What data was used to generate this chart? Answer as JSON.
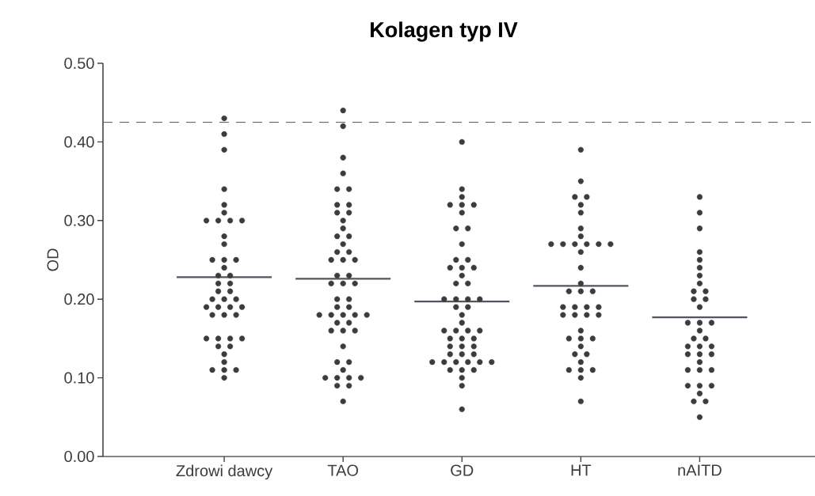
{
  "chart_data": {
    "type": "scatter",
    "title": "Kolagen typ IV",
    "ylabel": "OD",
    "categories": [
      "Zdrowi dawcy",
      "TAO",
      "GD",
      "HT",
      "nAITD"
    ],
    "ylim": [
      0,
      0.5
    ],
    "yticks": [
      {
        "value": 0,
        "label": "0.00"
      },
      {
        "value": 0.1,
        "label": "0.10"
      },
      {
        "value": 0.2,
        "label": "0.20"
      },
      {
        "value": 0.3,
        "label": "0.30"
      },
      {
        "value": 0.4,
        "label": "0.40"
      },
      {
        "value": 0.5,
        "label": "0.50"
      }
    ],
    "series": [
      {
        "color": "#3c3c3c",
        "x": [
          "Zdrowi dawcy",
          "Zdrowi dawcy",
          "Zdrowi dawcy",
          "Zdrowi dawcy",
          "Zdrowi dawcy",
          "Zdrowi dawcy",
          "Zdrowi dawcy",
          "Zdrowi dawcy",
          "Zdrowi dawcy",
          "Zdrowi dawcy",
          "Zdrowi dawcy",
          "Zdrowi dawcy",
          "Zdrowi dawcy",
          "Zdrowi dawcy",
          "Zdrowi dawcy",
          "Zdrowi dawcy",
          "Zdrowi dawcy",
          "Zdrowi dawcy",
          "Zdrowi dawcy",
          "Zdrowi dawcy",
          "Zdrowi dawcy",
          "Zdrowi dawcy",
          "Zdrowi dawcy",
          "Zdrowi dawcy",
          "Zdrowi dawcy",
          "Zdrowi dawcy",
          "Zdrowi dawcy",
          "Zdrowi dawcy",
          "Zdrowi dawcy",
          "Zdrowi dawcy",
          "Zdrowi dawcy",
          "Zdrowi dawcy",
          "Zdrowi dawcy",
          "Zdrowi dawcy",
          "Zdrowi dawcy",
          "Zdrowi dawcy",
          "Zdrowi dawcy",
          "Zdrowi dawcy",
          "Zdrowi dawcy",
          "Zdrowi dawcy",
          "Zdrowi dawcy",
          "Zdrowi dawcy",
          "Zdrowi dawcy",
          "Zdrowi dawcy"
        ],
        "values": [
          0.43,
          0.41,
          0.39,
          0.34,
          0.32,
          0.31,
          0.3,
          0.3,
          0.3,
          0.3,
          0.28,
          0.27,
          0.25,
          0.25,
          0.25,
          0.24,
          0.23,
          0.23,
          0.22,
          0.22,
          0.21,
          0.21,
          0.2,
          0.2,
          0.2,
          0.19,
          0.19,
          0.19,
          0.19,
          0.18,
          0.18,
          0.18,
          0.15,
          0.15,
          0.15,
          0.15,
          0.14,
          0.14,
          0.13,
          0.12,
          0.11,
          0.11,
          0.11,
          0.1
        ]
      },
      {
        "color": "#3c3c3c",
        "x": [
          "TAO",
          "TAO",
          "TAO",
          "TAO",
          "TAO",
          "TAO",
          "TAO",
          "TAO",
          "TAO",
          "TAO",
          "TAO",
          "TAO",
          "TAO",
          "TAO",
          "TAO",
          "TAO",
          "TAO",
          "TAO",
          "TAO",
          "TAO",
          "TAO",
          "TAO",
          "TAO",
          "TAO",
          "TAO",
          "TAO",
          "TAO",
          "TAO",
          "TAO",
          "TAO",
          "TAO",
          "TAO",
          "TAO",
          "TAO",
          "TAO",
          "TAO",
          "TAO",
          "TAO",
          "TAO",
          "TAO",
          "TAO",
          "TAO",
          "TAO",
          "TAO",
          "TAO",
          "TAO",
          "TAO",
          "TAO",
          "TAO",
          "TAO"
        ],
        "values": [
          0.44,
          0.42,
          0.38,
          0.36,
          0.34,
          0.34,
          0.32,
          0.32,
          0.31,
          0.31,
          0.3,
          0.29,
          0.28,
          0.28,
          0.27,
          0.26,
          0.26,
          0.25,
          0.25,
          0.25,
          0.23,
          0.23,
          0.22,
          0.22,
          0.22,
          0.2,
          0.2,
          0.19,
          0.19,
          0.18,
          0.18,
          0.18,
          0.18,
          0.18,
          0.17,
          0.17,
          0.16,
          0.16,
          0.16,
          0.14,
          0.12,
          0.12,
          0.11,
          0.1,
          0.1,
          0.1,
          0.1,
          0.09,
          0.09,
          0.07
        ]
      },
      {
        "color": "#3c3c3c",
        "x": [
          "GD",
          "GD",
          "GD",
          "GD",
          "GD",
          "GD",
          "GD",
          "GD",
          "GD",
          "GD",
          "GD",
          "GD",
          "GD",
          "GD",
          "GD",
          "GD",
          "GD",
          "GD",
          "GD",
          "GD",
          "GD",
          "GD",
          "GD",
          "GD",
          "GD",
          "GD",
          "GD",
          "GD",
          "GD",
          "GD",
          "GD",
          "GD",
          "GD",
          "GD",
          "GD",
          "GD",
          "GD",
          "GD",
          "GD",
          "GD",
          "GD",
          "GD",
          "GD",
          "GD",
          "GD",
          "GD",
          "GD",
          "GD",
          "GD",
          "GD",
          "GD"
        ],
        "values": [
          0.4,
          0.34,
          0.33,
          0.32,
          0.32,
          0.32,
          0.31,
          0.29,
          0.29,
          0.27,
          0.25,
          0.25,
          0.24,
          0.24,
          0.24,
          0.23,
          0.22,
          0.22,
          0.2,
          0.2,
          0.2,
          0.2,
          0.19,
          0.19,
          0.18,
          0.17,
          0.16,
          0.16,
          0.16,
          0.16,
          0.15,
          0.15,
          0.15,
          0.14,
          0.14,
          0.14,
          0.13,
          0.13,
          0.13,
          0.12,
          0.12,
          0.12,
          0.12,
          0.12,
          0.12,
          0.11,
          0.11,
          0.11,
          0.1,
          0.09,
          0.06
        ]
      },
      {
        "color": "#3c3c3c",
        "x": [
          "HT",
          "HT",
          "HT",
          "HT",
          "HT",
          "HT",
          "HT",
          "HT",
          "HT",
          "HT",
          "HT",
          "HT",
          "HT",
          "HT",
          "HT",
          "HT",
          "HT",
          "HT",
          "HT",
          "HT",
          "HT",
          "HT",
          "HT",
          "HT",
          "HT",
          "HT",
          "HT",
          "HT",
          "HT",
          "HT",
          "HT",
          "HT",
          "HT",
          "HT",
          "HT",
          "HT",
          "HT",
          "HT",
          "HT",
          "HT",
          "HT"
        ],
        "values": [
          0.39,
          0.35,
          0.33,
          0.33,
          0.32,
          0.31,
          0.29,
          0.28,
          0.27,
          0.27,
          0.27,
          0.27,
          0.27,
          0.27,
          0.26,
          0.24,
          0.22,
          0.21,
          0.21,
          0.21,
          0.19,
          0.19,
          0.19,
          0.19,
          0.18,
          0.18,
          0.18,
          0.18,
          0.16,
          0.15,
          0.15,
          0.15,
          0.14,
          0.13,
          0.13,
          0.12,
          0.11,
          0.11,
          0.11,
          0.1,
          0.07
        ]
      },
      {
        "color": "#3c3c3c",
        "x": [
          "nAITD",
          "nAITD",
          "nAITD",
          "nAITD",
          "nAITD",
          "nAITD",
          "nAITD",
          "nAITD",
          "nAITD",
          "nAITD",
          "nAITD",
          "nAITD",
          "nAITD",
          "nAITD",
          "nAITD",
          "nAITD",
          "nAITD",
          "nAITD",
          "nAITD",
          "nAITD",
          "nAITD",
          "nAITD",
          "nAITD",
          "nAITD",
          "nAITD",
          "nAITD",
          "nAITD",
          "nAITD",
          "nAITD",
          "nAITD",
          "nAITD",
          "nAITD",
          "nAITD",
          "nAITD",
          "nAITD",
          "nAITD"
        ],
        "values": [
          0.33,
          0.31,
          0.29,
          0.26,
          0.25,
          0.24,
          0.23,
          0.22,
          0.21,
          0.21,
          0.2,
          0.2,
          0.19,
          0.17,
          0.17,
          0.17,
          0.16,
          0.15,
          0.15,
          0.14,
          0.14,
          0.14,
          0.13,
          0.13,
          0.13,
          0.12,
          0.11,
          0.11,
          0.11,
          0.09,
          0.09,
          0.09,
          0.08,
          0.07,
          0.07,
          0.05
        ]
      },
      {
        "type": "box",
        "color": "#5a5060",
        "boxes": [
          {
            "low": 0.228,
            "q1": 0.228,
            "median": 0.228,
            "q3": 0.228,
            "high": 0.228
          },
          {
            "low": 0.226,
            "q1": 0.226,
            "median": 0.226,
            "q3": 0.226,
            "high": 0.226
          },
          {
            "low": 0.197,
            "q1": 0.197,
            "median": 0.197,
            "q3": 0.197,
            "high": 0.197
          },
          {
            "low": 0.217,
            "q1": 0.217,
            "median": 0.217,
            "q3": 0.217,
            "high": 0.217
          },
          {
            "low": 0.177,
            "q1": 0.177,
            "median": 0.177,
            "q3": 0.177,
            "high": 0.177
          }
        ]
      }
    ],
    "ref_lines": [
      {
        "axis": "y",
        "value": 0.425,
        "color": "#6a6070",
        "line_style": "dashed"
      }
    ]
  }
}
